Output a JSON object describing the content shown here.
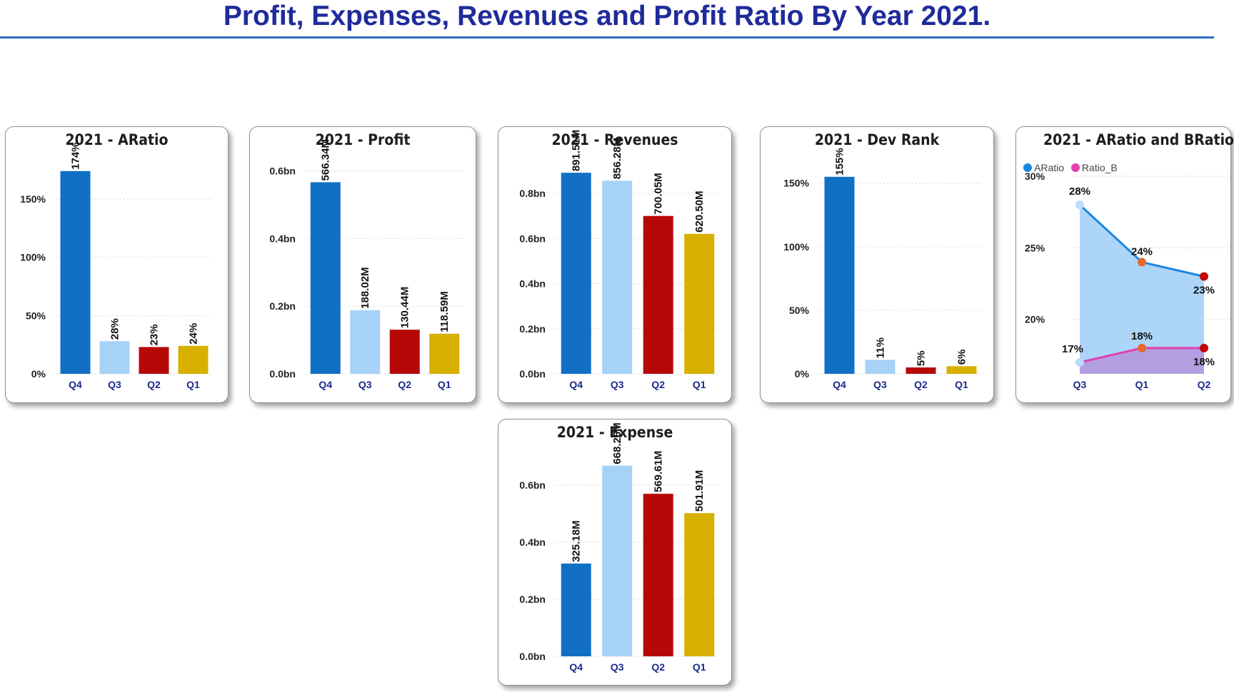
{
  "page": {
    "title": "Profit, Expenses, Revenues and Profit Ratio By Year 2021."
  },
  "colors": {
    "Q4": "#1170c6",
    "Q3": "#a6d2f8",
    "Q2": "#b70808",
    "Q1": "#d8b000"
  },
  "chart_data": [
    {
      "id": "aratio",
      "type": "bar",
      "title": "2021 - ARatio",
      "categories": [
        "Q4",
        "Q3",
        "Q2",
        "Q1"
      ],
      "values": [
        174,
        28,
        23,
        24
      ],
      "labels": [
        "174%",
        "28%",
        "23%",
        "24%"
      ],
      "yticks": [
        0,
        50,
        100,
        150
      ],
      "ytick_labels": [
        "0%",
        "50%",
        "100%",
        "150%"
      ],
      "ylim": [
        0,
        180
      ]
    },
    {
      "id": "profit",
      "type": "bar",
      "title": "2021 - Profit",
      "categories": [
        "Q4",
        "Q3",
        "Q2",
        "Q1"
      ],
      "values": [
        0.56634,
        0.18802,
        0.13044,
        0.11859
      ],
      "labels": [
        "566.34M",
        "188.02M",
        "130.44M",
        "118.59M"
      ],
      "yticks": [
        0,
        0.2,
        0.4,
        0.6
      ],
      "ytick_labels": [
        "0.0bn",
        "0.2bn",
        "0.4bn",
        "0.6bn"
      ],
      "ylim": [
        0,
        0.62
      ]
    },
    {
      "id": "revenues",
      "type": "bar",
      "title": "2021 - Revenues",
      "categories": [
        "Q4",
        "Q3",
        "Q2",
        "Q1"
      ],
      "values": [
        0.89151,
        0.85628,
        0.70005,
        0.6205
      ],
      "labels": [
        "891.51M",
        "856.28M",
        "700.05M",
        "620.50M"
      ],
      "yticks": [
        0,
        0.2,
        0.4,
        0.6,
        0.8
      ],
      "ytick_labels": [
        "0.0bn",
        "0.2bn",
        "0.4bn",
        "0.6bn",
        "0.8bn"
      ],
      "ylim": [
        0,
        0.93
      ]
    },
    {
      "id": "devrank",
      "type": "bar",
      "title": "2021 - Dev Rank",
      "categories": [
        "Q4",
        "Q3",
        "Q2",
        "Q1"
      ],
      "values": [
        155,
        11,
        5,
        6
      ],
      "labels": [
        "155%",
        "11%",
        "5%",
        "6%"
      ],
      "yticks": [
        0,
        50,
        100,
        150
      ],
      "ytick_labels": [
        "0%",
        "50%",
        "100%",
        "150%"
      ],
      "ylim": [
        0,
        165
      ]
    },
    {
      "id": "expense",
      "type": "bar",
      "title": "2021 - Expense",
      "categories": [
        "Q4",
        "Q3",
        "Q2",
        "Q1"
      ],
      "values": [
        0.32518,
        0.66826,
        0.56961,
        0.50191
      ],
      "labels": [
        "325.18M",
        "668.26M",
        "569.61M",
        "501.91M"
      ],
      "yticks": [
        0,
        0.2,
        0.4,
        0.6
      ],
      "ytick_labels": [
        "0.0bn",
        "0.2bn",
        "0.4bn",
        "0.6bn"
      ],
      "ylim": [
        0,
        0.7
      ]
    },
    {
      "id": "ratios",
      "type": "area",
      "title": "2021 - ARatio and BRatio",
      "categories": [
        "Q3",
        "Q1",
        "Q2"
      ],
      "legend": [
        "ARatio",
        "Ratio_B"
      ],
      "legend_colors": [
        "#1a86e0",
        "#e040b0"
      ],
      "series": [
        {
          "name": "ARatio",
          "values": [
            28,
            24,
            23
          ],
          "labels": [
            "28%",
            "24%",
            "23%"
          ]
        },
        {
          "name": "Ratio_B",
          "values": [
            17,
            18,
            18
          ],
          "labels": [
            "17%",
            "18%",
            "18%"
          ]
        }
      ],
      "yticks": [
        20,
        25,
        30
      ],
      "ytick_labels": [
        "20%",
        "25%",
        "30%"
      ],
      "ylim": [
        16.2,
        30
      ]
    }
  ]
}
